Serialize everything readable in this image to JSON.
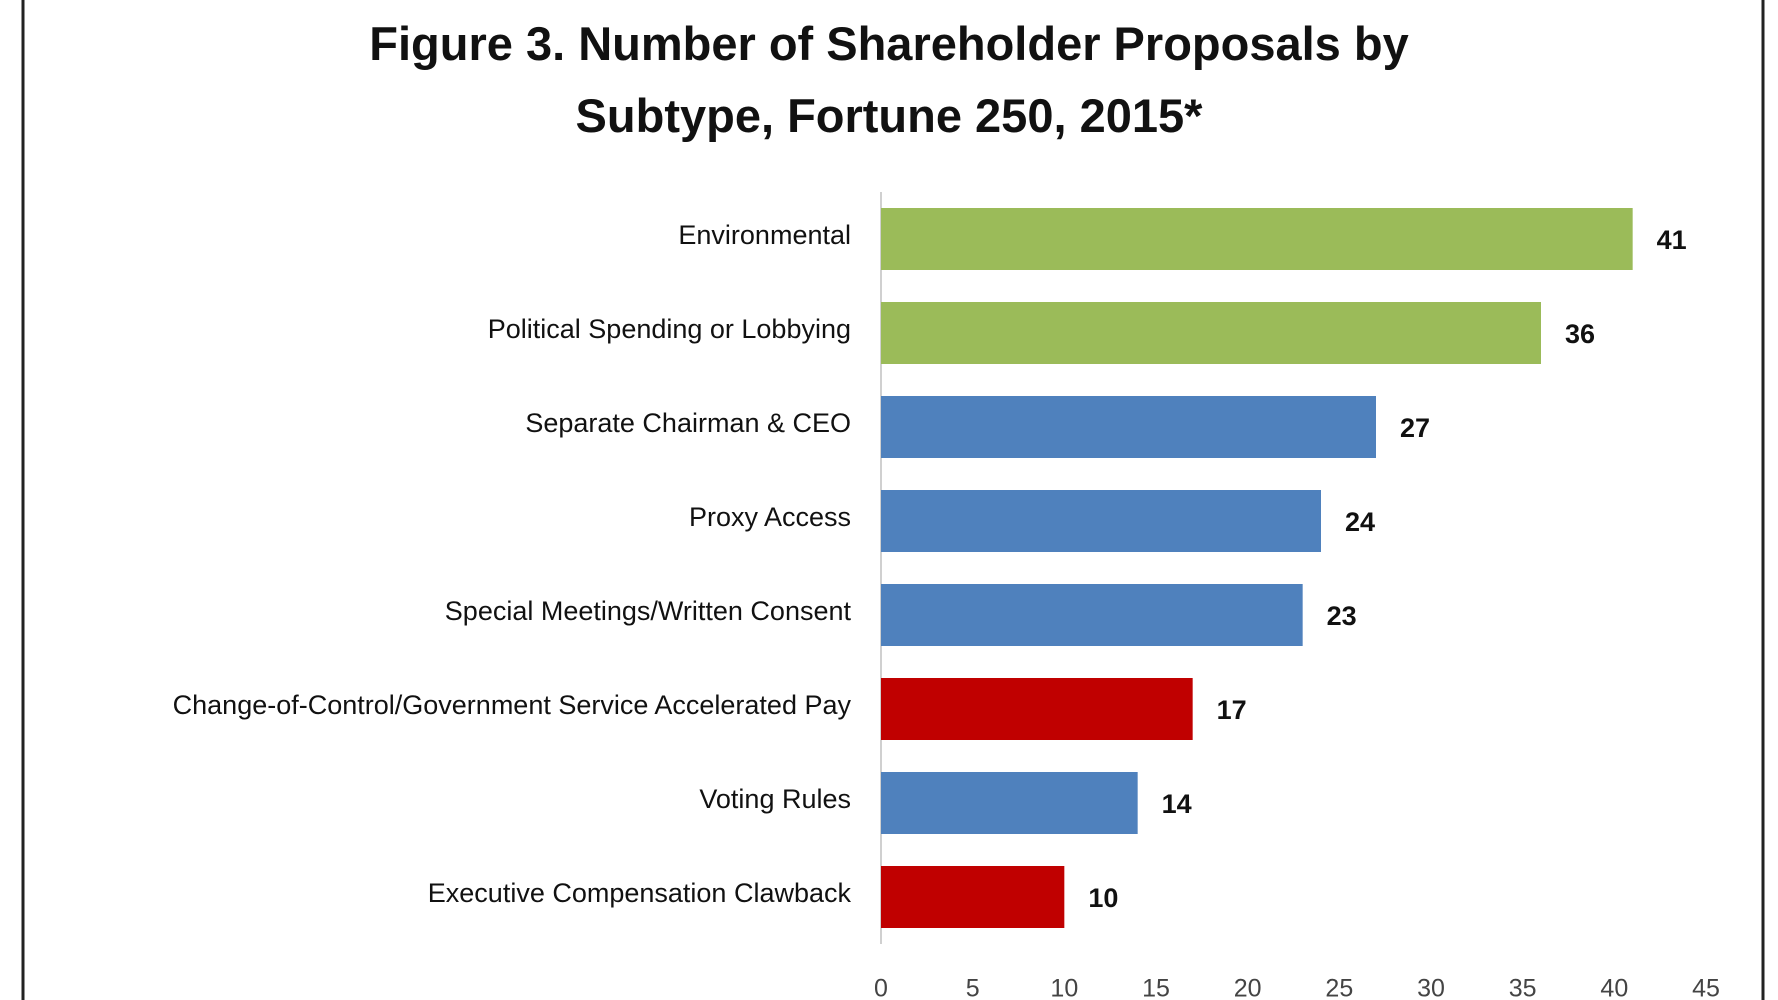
{
  "chart_data": {
    "type": "barh",
    "title": "Figure 3. Number of Shareholder Proposals by Subtype, Fortune 250, 2015*",
    "categories": [
      "Environmental",
      "Political Spending or Lobbying",
      "Separate Chairman & CEO",
      "Proxy Access",
      "Special Meetings/Written Consent",
      "Change-of-Control/Government Service Accelerated Pay",
      "Voting Rules",
      "Executive Compensation Clawback"
    ],
    "values": [
      41,
      36,
      27,
      24,
      23,
      17,
      14,
      10
    ],
    "colors": [
      "#9bbb59",
      "#9bbb59",
      "#4f81bd",
      "#4f81bd",
      "#4f81bd",
      "#c00000",
      "#4f81bd",
      "#c00000"
    ],
    "xlim": [
      0,
      45
    ],
    "xticks": [
      0,
      5,
      10,
      15,
      20,
      25,
      30,
      35,
      40,
      45
    ],
    "grid": false
  }
}
